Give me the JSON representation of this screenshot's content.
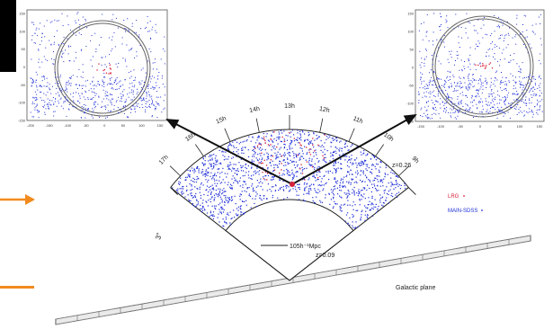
{
  "labels": {
    "z_outer": "z=0.26",
    "z_inner": "z=0.09",
    "scale": "105h⁻¹Mpc",
    "galactic_plane": "Galactic plane",
    "legend_lrg": "LRG",
    "legend_main": "MAIN-SDSS"
  },
  "ra_labels": [
    "9h",
    "10h",
    "11h",
    "12h",
    "13h",
    "14h",
    "15h",
    "16h",
    "17h"
  ],
  "dec_label": "3°",
  "inset_left": {
    "x_ticks": [
      "-200",
      "-150",
      "-100",
      "-50",
      "0",
      "50",
      "100",
      "150"
    ],
    "y_ticks": [
      "150",
      "100",
      "50",
      "0",
      "-50",
      "-100",
      "-150"
    ]
  },
  "inset_right": {
    "x_ticks": [
      "-150",
      "-100",
      "-50",
      "0",
      "50",
      "100",
      "150"
    ],
    "y_ticks": [
      "150",
      "100",
      "50",
      "0",
      "-50",
      "-100",
      "-150"
    ]
  },
  "colors": {
    "main_sdss": "#1f2fd8",
    "lrg": "#d8203a",
    "accent": "#f28a1e"
  }
}
